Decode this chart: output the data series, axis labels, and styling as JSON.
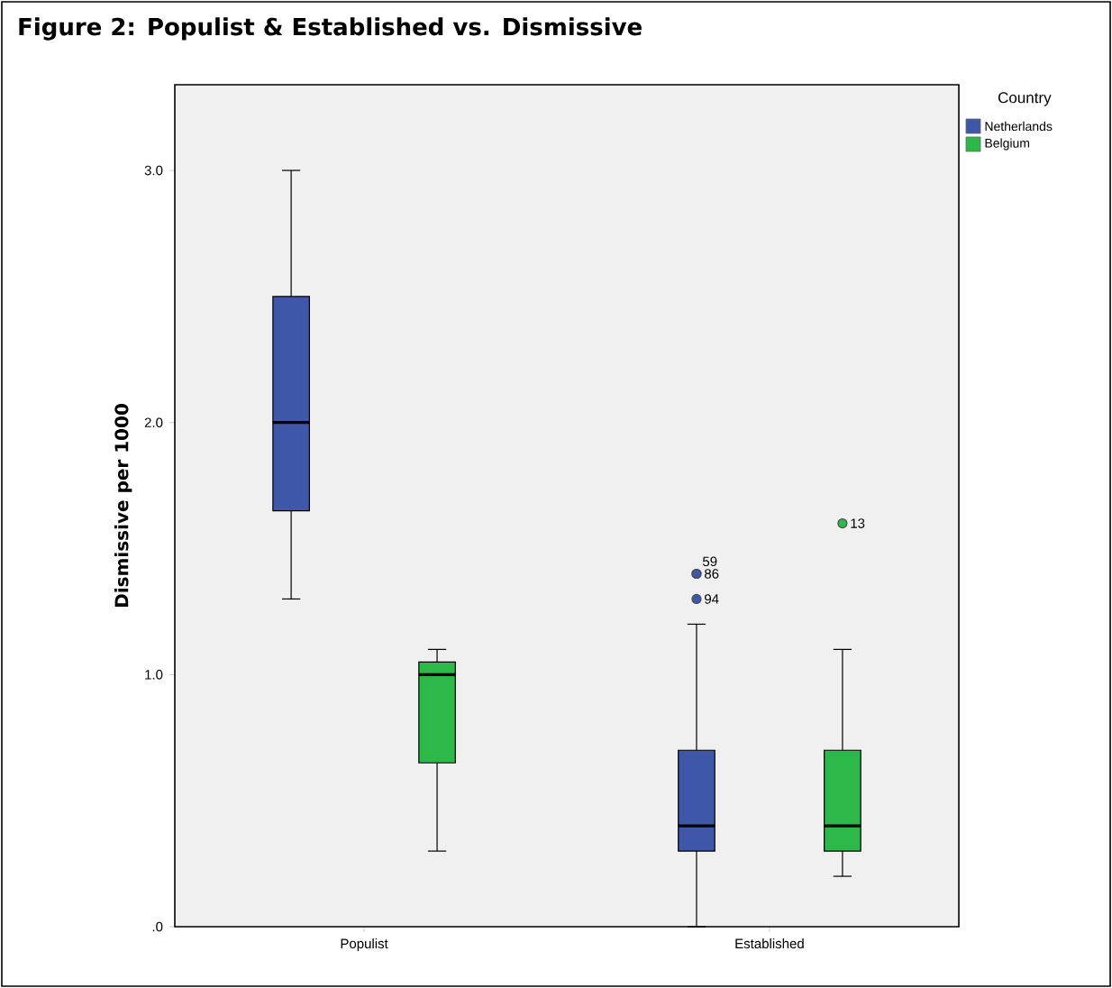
{
  "chart_data": {
    "type": "box",
    "title": "Figure 2: Populist & Established vs. Dismissive",
    "ylabel": "Dismissive per 1000",
    "legend_title": "Country",
    "legend": "right",
    "grid": false,
    "categories": [
      "Populist",
      "Established"
    ],
    "ylim": [
      0,
      3.34
    ],
    "yticks": [
      {
        "value": 0,
        "label": ".0"
      },
      {
        "value": 1,
        "label": "1.0"
      },
      {
        "value": 2,
        "label": "2.0"
      },
      {
        "value": 3,
        "label": "3.0"
      }
    ],
    "series": [
      {
        "name": "Netherlands",
        "color": "#3f57a8",
        "boxes": [
          {
            "low": 1.3,
            "q1": 1.65,
            "median": 2.0,
            "q3": 2.5,
            "high": 3.0
          },
          {
            "low": 0.0,
            "q1": 0.3,
            "median": 0.4,
            "q3": 0.7,
            "high": 1.2,
            "outliers": [
              1.4,
              1.4,
              1.3
            ]
          }
        ]
      },
      {
        "name": "Belgium",
        "color": "#2db84a",
        "boxes": [
          {
            "low": 0.3,
            "q1": 0.65,
            "median": 1.0,
            "q3": 1.05,
            "high": 1.1
          },
          {
            "low": 0.2,
            "q1": 0.3,
            "median": 0.4,
            "q3": 0.7,
            "high": 1.1,
            "outliers": [
              1.6
            ]
          }
        ]
      }
    ],
    "annotations": [
      "59",
      "86",
      "94",
      "13"
    ]
  }
}
